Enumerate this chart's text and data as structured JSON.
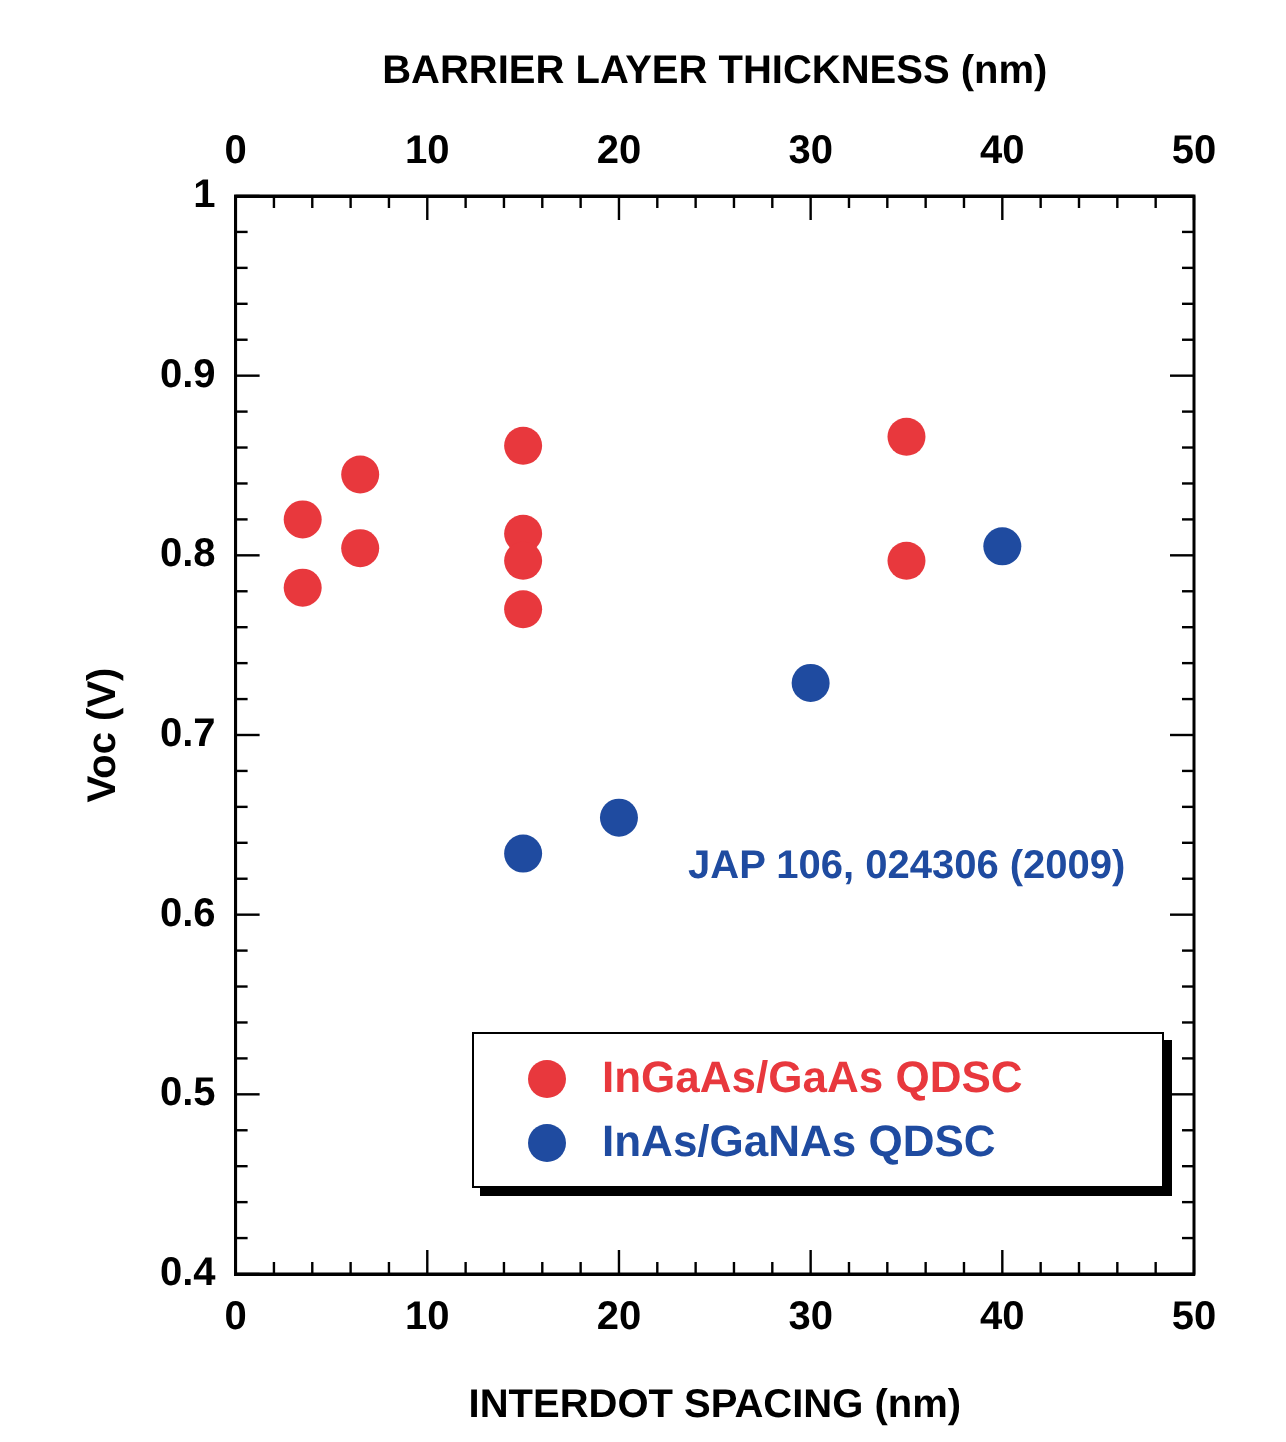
{
  "chart_data": {
    "type": "scatter",
    "xlabel": "INTERDOT SPACING (nm)",
    "x2label": "BARRIER LAYER THICKNESS (nm)",
    "ylabel": "Voc (V)",
    "xlim": [
      0,
      50
    ],
    "x2lim": [
      0,
      50
    ],
    "ylim": [
      0.4,
      1
    ],
    "xticks": [
      0,
      {
        "value": 2,
        "label": null
      },
      {
        "value": 4,
        "label": null
      },
      {
        "value": 6,
        "label": null
      },
      {
        "value": 8,
        "label": null
      },
      10,
      {
        "value": 12,
        "label": null
      },
      {
        "value": 14,
        "label": null
      },
      {
        "value": 16,
        "label": null
      },
      {
        "value": 18,
        "label": null
      },
      20,
      {
        "value": 22,
        "label": null
      },
      {
        "value": 24,
        "label": null
      },
      {
        "value": 26,
        "label": null
      },
      {
        "value": 28,
        "label": null
      },
      30,
      {
        "value": 32,
        "label": null
      },
      {
        "value": 34,
        "label": null
      },
      {
        "value": 36,
        "label": null
      },
      {
        "value": 38,
        "label": null
      },
      40,
      {
        "value": 42,
        "label": null
      },
      {
        "value": 44,
        "label": null
      },
      {
        "value": 46,
        "label": null
      },
      {
        "value": 48,
        "label": null
      },
      50
    ],
    "x2ticks": [
      0,
      {
        "value": 2,
        "label": null
      },
      {
        "value": 4,
        "label": null
      },
      {
        "value": 6,
        "label": null
      },
      {
        "value": 8,
        "label": null
      },
      10,
      {
        "value": 12,
        "label": null
      },
      {
        "value": 14,
        "label": null
      },
      {
        "value": 16,
        "label": null
      },
      {
        "value": 18,
        "label": null
      },
      20,
      {
        "value": 22,
        "label": null
      },
      {
        "value": 24,
        "label": null
      },
      {
        "value": 26,
        "label": null
      },
      {
        "value": 28,
        "label": null
      },
      30,
      {
        "value": 32,
        "label": null
      },
      {
        "value": 34,
        "label": null
      },
      {
        "value": 36,
        "label": null
      },
      {
        "value": 38,
        "label": null
      },
      40,
      {
        "value": 42,
        "label": null
      },
      {
        "value": 44,
        "label": null
      },
      {
        "value": 46,
        "label": null
      },
      {
        "value": 48,
        "label": null
      },
      50
    ],
    "yticks": [
      0.4,
      {
        "value": 0.42,
        "label": null
      },
      {
        "value": 0.44,
        "label": null
      },
      {
        "value": 0.46,
        "label": null
      },
      {
        "value": 0.48,
        "label": null
      },
      0.5,
      {
        "value": 0.52,
        "label": null
      },
      {
        "value": 0.54,
        "label": null
      },
      {
        "value": 0.56,
        "label": null
      },
      {
        "value": 0.58,
        "label": null
      },
      0.6,
      {
        "value": 0.62,
        "label": null
      },
      {
        "value": 0.64,
        "label": null
      },
      {
        "value": 0.66,
        "label": null
      },
      {
        "value": 0.68,
        "label": null
      },
      0.7,
      {
        "value": 0.72,
        "label": null
      },
      {
        "value": 0.74,
        "label": null
      },
      {
        "value": 0.76,
        "label": null
      },
      {
        "value": 0.78,
        "label": null
      },
      0.8,
      {
        "value": 0.82,
        "label": null
      },
      {
        "value": 0.84,
        "label": null
      },
      {
        "value": 0.86,
        "label": null
      },
      {
        "value": 0.88,
        "label": null
      },
      0.9,
      {
        "value": 0.92,
        "label": null
      },
      {
        "value": 0.94,
        "label": null
      },
      {
        "value": 0.96,
        "label": null
      },
      {
        "value": 0.98,
        "label": null
      },
      1
    ],
    "marker": "circle",
    "grid": false,
    "legend": "bottom right",
    "annotations": [
      "JAP 106, 024306 (2009)"
    ],
    "series": [
      {
        "name": "InGaAs/GaAs QDSC",
        "color": "#e8383d",
        "x": [
          3.5,
          3.5,
          6.5,
          6.5,
          15,
          15,
          15,
          15,
          35,
          35
        ],
        "values": [
          0.82,
          0.782,
          0.845,
          0.804,
          0.861,
          0.812,
          0.797,
          0.77,
          0.866,
          0.797
        ]
      },
      {
        "name": "InAs/GaNAs QDSC",
        "color": "#1f4ba0",
        "x": [
          15,
          20,
          30,
          40
        ],
        "values": [
          0.634,
          0.654,
          0.729,
          0.805
        ]
      }
    ]
  }
}
